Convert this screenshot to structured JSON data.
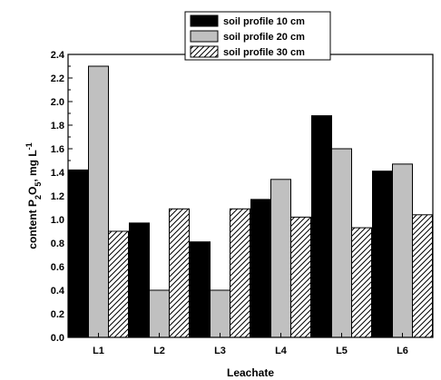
{
  "chart_data": {
    "type": "bar",
    "categories": [
      "L1",
      "L2",
      "L3",
      "L4",
      "L5",
      "L6"
    ],
    "series": [
      {
        "name": "soil profile 10 cm",
        "values": [
          1.42,
          0.97,
          0.81,
          1.17,
          1.88,
          1.41
        ],
        "fill": "#000000",
        "pattern": "solid"
      },
      {
        "name": "soil profile 20 cm",
        "values": [
          2.3,
          0.4,
          0.4,
          1.34,
          1.6,
          1.47
        ],
        "fill": "#c0c0c0",
        "pattern": "solid"
      },
      {
        "name": "soil profile 30 cm",
        "values": [
          0.9,
          1.09,
          1.09,
          1.02,
          0.93,
          1.04
        ],
        "fill": "#ffffff",
        "pattern": "diagonal-hatch"
      }
    ],
    "ylim": [
      0,
      2.4
    ],
    "yticks": [
      "0.0",
      "0.2",
      "0.4",
      "0.6",
      "0.8",
      "1.0",
      "1.2",
      "1.4",
      "1.6",
      "1.8",
      "2.0",
      "2.2",
      "2.4"
    ],
    "xlabel": "Leachate",
    "ylabel": {
      "pre": "content P",
      "sub1": "2",
      "mid": "O",
      "sub2": "5",
      "unit": ", mg L",
      "sup": "-1"
    },
    "legend_position": "top-center",
    "grid": false
  }
}
